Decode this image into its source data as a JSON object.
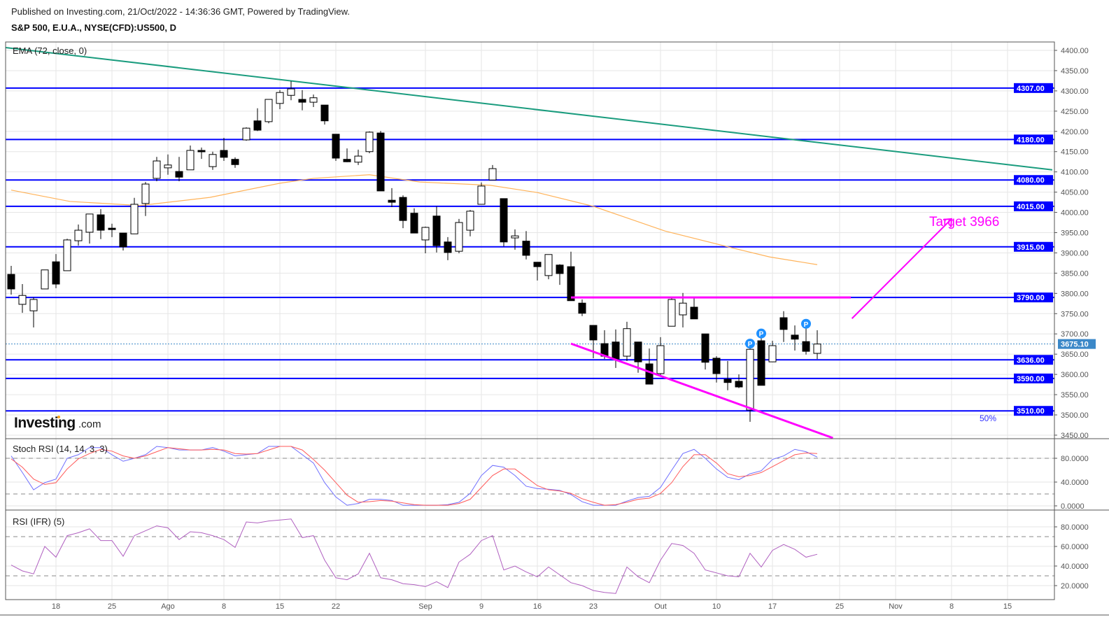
{
  "header": {
    "published": "Published on Investing.com, 21/Oct/2022 - 14:36:36 GMT, Powered by TradingView.",
    "symbol": "S&P 500, E.U.A., NYSE(CFD):US500, D"
  },
  "logo": {
    "brand": "Investing",
    "suffix": ".com"
  },
  "colors": {
    "level": "#0000ff",
    "trend": "#1a9c7e",
    "ema": "#ffb35a",
    "magenta": "#ff00ff",
    "stoch_k": "#6f6fff",
    "stoch_d": "#ff5a5a",
    "rsi": "#b060c0",
    "last": "#3b88c8",
    "marker": "#1e90ff"
  },
  "chart_data": {
    "type": "candlestick",
    "title": "S&P 500, E.U.A., NYSE(CFD):US500, D",
    "ylim": [
      3430,
      4420
    ],
    "y_ticks": [
      4400,
      4350,
      4300,
      4250,
      4200,
      4150,
      4100,
      4050,
      4000,
      3950,
      3900,
      3850,
      3800,
      3750,
      3700,
      3650,
      3600,
      3550,
      3500,
      3450
    ],
    "x_ticks": [
      {
        "label": "18",
        "index": 4
      },
      {
        "label": "25",
        "index": 9
      },
      {
        "label": "Ago",
        "index": 14
      },
      {
        "label": "8",
        "index": 19
      },
      {
        "label": "15",
        "index": 24
      },
      {
        "label": "22",
        "index": 29
      },
      {
        "label": "Sep",
        "index": 37
      },
      {
        "label": "9",
        "index": 42
      },
      {
        "label": "16",
        "index": 47
      },
      {
        "label": "23",
        "index": 52
      },
      {
        "label": "Out",
        "index": 58
      },
      {
        "label": "10",
        "index": 63
      },
      {
        "label": "17",
        "index": 68
      },
      {
        "label": "25",
        "index": 74
      },
      {
        "label": "Nov",
        "index": 79
      },
      {
        "label": "8",
        "index": 84
      },
      {
        "label": "15",
        "index": 89
      }
    ],
    "candle_fields": [
      "date",
      "open",
      "high",
      "low",
      "close"
    ],
    "candles": [
      [
        "2022-07-12",
        3847,
        3868,
        3797,
        3811
      ],
      [
        "2022-07-13",
        3773,
        3823,
        3752,
        3795
      ],
      [
        "2022-07-14",
        3757,
        3790,
        3716,
        3785
      ],
      [
        "2022-07-15",
        3811,
        3858,
        3811,
        3858
      ],
      [
        "2022-07-18",
        3878,
        3897,
        3813,
        3823
      ],
      [
        "2022-07-19",
        3856,
        3935,
        3856,
        3932
      ],
      [
        "2022-07-20",
        3930,
        3970,
        3918,
        3956
      ],
      [
        "2022-07-21",
        3951,
        3996,
        3923,
        3996
      ],
      [
        "2022-07-22",
        3994,
        4008,
        3934,
        3956
      ],
      [
        "2022-07-25",
        3961,
        3972,
        3939,
        3960
      ],
      [
        "2022-07-26",
        3949,
        3949,
        3906,
        3915
      ],
      [
        "2022-07-27",
        3947,
        4036,
        3947,
        4020
      ],
      [
        "2022-07-28",
        4022,
        4075,
        3991,
        4070
      ],
      [
        "2022-07-29",
        4084,
        4137,
        4077,
        4127
      ],
      [
        "2022-08-01",
        4110,
        4143,
        4093,
        4117
      ],
      [
        "2022-08-02",
        4101,
        4137,
        4077,
        4087
      ],
      [
        "2022-08-03",
        4105,
        4165,
        4105,
        4153
      ],
      [
        "2022-08-04",
        4153,
        4160,
        4132,
        4150
      ],
      [
        "2022-08-05",
        4113,
        4150,
        4105,
        4143
      ],
      [
        "2022-08-08",
        4153,
        4184,
        4127,
        4136
      ],
      [
        "2022-08-09",
        4131,
        4136,
        4110,
        4118
      ],
      [
        "2022-08-10",
        4179,
        4210,
        4177,
        4208
      ],
      [
        "2022-08-11",
        4226,
        4257,
        4201,
        4203
      ],
      [
        "2022-08-12",
        4224,
        4279,
        4220,
        4279
      ],
      [
        "2022-08-15",
        4269,
        4302,
        4255,
        4296
      ],
      [
        "2022-08-16",
        4289,
        4324,
        4277,
        4305
      ],
      [
        "2022-08-17",
        4279,
        4302,
        4252,
        4272
      ],
      [
        "2022-08-18",
        4272,
        4291,
        4260,
        4283
      ],
      [
        "2022-08-19",
        4265,
        4265,
        4217,
        4226
      ],
      [
        "2022-08-22",
        4193,
        4193,
        4127,
        4134
      ],
      [
        "2022-08-23",
        4131,
        4158,
        4124,
        4125
      ],
      [
        "2022-08-24",
        4124,
        4155,
        4117,
        4139
      ],
      [
        "2022-08-25",
        4150,
        4200,
        4146,
        4198
      ],
      [
        "2022-08-26",
        4196,
        4201,
        4053,
        4053
      ],
      [
        "2022-08-29",
        4030,
        4060,
        4013,
        4025
      ],
      [
        "2022-08-30",
        4037,
        4042,
        3961,
        3980
      ],
      [
        "2022-08-31",
        3998,
        4010,
        3949,
        3949
      ],
      [
        "2022-09-01",
        3932,
        3965,
        3899,
        3963
      ],
      [
        "2022-09-02",
        3991,
        4015,
        3901,
        3918
      ],
      [
        "2022-09-06",
        3927,
        3939,
        3882,
        3901
      ],
      [
        "2022-09-07",
        3904,
        3984,
        3899,
        3975
      ],
      [
        "2022-09-08",
        3956,
        4006,
        3941,
        4003
      ],
      [
        "2022-09-09",
        4020,
        4074,
        4020,
        4065
      ],
      [
        "2022-09-12",
        4080,
        4117,
        4080,
        4108
      ],
      [
        "2022-09-13",
        4034,
        4034,
        3916,
        3927
      ],
      [
        "2022-09-14",
        3937,
        3958,
        3908,
        3942
      ],
      [
        "2022-09-15",
        3929,
        3954,
        3884,
        3894
      ],
      [
        "2022-09-16",
        3877,
        3877,
        3832,
        3866
      ],
      [
        "2022-09-19",
        3844,
        3896,
        3835,
        3896
      ],
      [
        "2022-09-20",
        3870,
        3872,
        3821,
        3849
      ],
      [
        "2022-09-21",
        3866,
        3903,
        3782,
        3782
      ],
      [
        "2022-09-22",
        3776,
        3785,
        3744,
        3751
      ],
      [
        "2022-09-23",
        3721,
        3721,
        3640,
        3685
      ],
      [
        "2022-09-26",
        3676,
        3709,
        3638,
        3645
      ],
      [
        "2022-09-27",
        3680,
        3711,
        3616,
        3638
      ],
      [
        "2022-09-28",
        3645,
        3730,
        3633,
        3713
      ],
      [
        "2022-09-29",
        3680,
        3680,
        3604,
        3631
      ],
      [
        "2022-09-30",
        3626,
        3664,
        3576,
        3576
      ],
      [
        "2022-10-03",
        3602,
        3692,
        3597,
        3671
      ],
      [
        "2022-10-04",
        3719,
        3792,
        3719,
        3785
      ],
      [
        "2022-10-05",
        3747,
        3801,
        3716,
        3776
      ],
      [
        "2022-10-06",
        3766,
        3792,
        3737,
        3737
      ],
      [
        "2022-10-07",
        3700,
        3700,
        3612,
        3630
      ],
      [
        "2022-10-10",
        3640,
        3645,
        3580,
        3602
      ],
      [
        "2022-10-11",
        3588,
        3633,
        3561,
        3580
      ],
      [
        "2022-10-12",
        3583,
        3600,
        3566,
        3569
      ],
      [
        "2022-10-13",
        3512,
        3678,
        3483,
        3662
      ],
      [
        "2022-10-14",
        3683,
        3706,
        3573,
        3573
      ],
      [
        "2022-10-17",
        3631,
        3683,
        3631,
        3671
      ],
      [
        "2022-10-18",
        3740,
        3756,
        3680,
        3711
      ],
      [
        "2022-10-19",
        3697,
        3721,
        3659,
        3687
      ],
      [
        "2022-10-20",
        3681,
        3730,
        3649,
        3657
      ],
      [
        "2022-10-21",
        3652,
        3709,
        3638,
        3675
      ]
    ],
    "ema": {
      "label": "EMA (72, close, 0)",
      "points": [
        [
          0,
          4055
        ],
        [
          5.25,
          4027
        ],
        [
          11.5,
          4017
        ],
        [
          17.75,
          4037
        ],
        [
          24,
          4072
        ],
        [
          27,
          4084
        ],
        [
          32,
          4093
        ],
        [
          36.5,
          4075
        ],
        [
          42.75,
          4067
        ],
        [
          47,
          4049
        ],
        [
          52,
          4015
        ],
        [
          58.4,
          3954
        ],
        [
          64.6,
          3911
        ],
        [
          67.75,
          3890
        ],
        [
          72,
          3871
        ]
      ]
    },
    "trendline": {
      "start": [
        -0.5,
        4407
      ],
      "end": [
        93,
        4105
      ]
    },
    "levels": [
      {
        "value": 4307,
        "label": "4307.00"
      },
      {
        "value": 4180,
        "label": "4180.00"
      },
      {
        "value": 4080,
        "label": "4080.00"
      },
      {
        "value": 4015,
        "label": "4015.00"
      },
      {
        "value": 3915,
        "label": "3915.00"
      },
      {
        "value": 3790,
        "label": "3790.00"
      },
      {
        "value": 3636,
        "label": "3636.00"
      },
      {
        "value": 3590,
        "label": "3590.00"
      },
      {
        "value": 3510,
        "label": "3510.00"
      }
    ],
    "last_price": {
      "value": 3675.1,
      "label": "3675.10"
    },
    "fib_label": "50%",
    "resistance": {
      "value": 3790,
      "from": 50,
      "to": 75
    },
    "support_trend": {
      "start": [
        50,
        3676
      ],
      "end": [
        73.4,
        3443
      ]
    },
    "target_arrow": {
      "start": [
        75.1,
        3738
      ],
      "end": [
        84,
        3984
      ],
      "label": "Target 3966"
    },
    "markers": [
      {
        "index": 66,
        "value": 3676,
        "label": "P"
      },
      {
        "index": 67,
        "value": 3701,
        "label": "P"
      },
      {
        "index": 71,
        "value": 3725,
        "label": "P"
      }
    ],
    "stoch_rsi": {
      "label": "Stoch RSI (14, 14, 3, 3)",
      "ticks": [
        {
          "v": 80,
          "label": "80.0000"
        },
        {
          "v": 40,
          "label": "40.0000"
        },
        {
          "v": 0,
          "label": "0.0000"
        }
      ],
      "bands": [
        80,
        20
      ],
      "k": [
        84,
        56,
        27,
        39,
        45,
        80,
        86,
        98,
        98,
        86,
        75,
        80,
        86,
        100,
        98,
        94,
        94,
        94,
        98,
        92,
        84,
        86,
        88,
        100,
        100,
        100,
        86,
        72,
        39,
        15,
        1,
        4,
        11,
        11,
        9,
        1,
        1,
        1,
        1,
        2,
        6,
        21,
        51,
        68,
        65,
        51,
        33,
        29,
        28,
        26,
        19,
        7,
        1,
        1,
        1,
        8,
        14,
        16,
        31,
        60,
        88,
        95,
        80,
        62,
        48,
        44,
        54,
        59,
        78,
        84,
        95,
        91,
        82
      ],
      "d": [
        79,
        65,
        45,
        36,
        39,
        62,
        79,
        88,
        95,
        92,
        84,
        80,
        84,
        91,
        98,
        96,
        94,
        94,
        95,
        94,
        88,
        87,
        88,
        94,
        100,
        100,
        94,
        78,
        60,
        39,
        18,
        6,
        7,
        9,
        8,
        5,
        2,
        1,
        1,
        1,
        4,
        11,
        31,
        51,
        62,
        62,
        48,
        34,
        27,
        25,
        21,
        12,
        6,
        1,
        2,
        6,
        11,
        13,
        21,
        39,
        66,
        86,
        86,
        72,
        54,
        49,
        51,
        56,
        66,
        76,
        86,
        89,
        88
      ]
    },
    "rsi": {
      "label": "RSI (IFR) (5)",
      "ticks": [
        {
          "v": 80,
          "label": "80.0000"
        },
        {
          "v": 60,
          "label": "60.0000"
        },
        {
          "v": 40,
          "label": "40.0000"
        },
        {
          "v": 20,
          "label": "20.0000"
        }
      ],
      "bands": [
        70,
        30
      ],
      "values": [
        41,
        35,
        32,
        60,
        49,
        71,
        74,
        78,
        66,
        66,
        50,
        71,
        76,
        81,
        79,
        67,
        75,
        74,
        71,
        67,
        59,
        85,
        84,
        86,
        87,
        88,
        69,
        71,
        46,
        28,
        26,
        32,
        53,
        28,
        26,
        22,
        21,
        19,
        24,
        18,
        44,
        52,
        66,
        71,
        36,
        40,
        34,
        29,
        39,
        31,
        23,
        20,
        15,
        13,
        12,
        39,
        29,
        23,
        46,
        63,
        61,
        53,
        36,
        33,
        30,
        29,
        53,
        39,
        56,
        62,
        57,
        49,
        52
      ]
    }
  }
}
